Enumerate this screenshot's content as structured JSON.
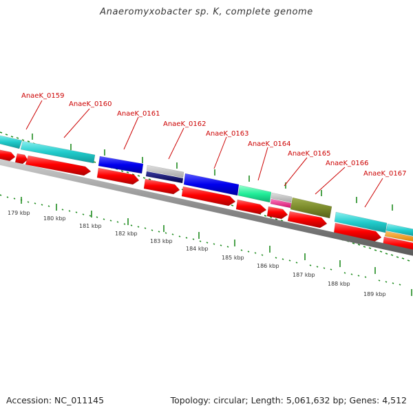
{
  "title": "Anaeromyxobacter sp. K, complete genome",
  "footer": {
    "accession": "Accession: NC_011145",
    "summary": "Topology: circular; Length: 5,061,632 bp; Genes: 4,512"
  },
  "colors": {
    "backbone": "#8a8a8a",
    "tick": "#1f8c1f",
    "cds_forward": "#ff1414",
    "label": "#cc0000"
  },
  "kbp_labels": [
    "179 kbp",
    "180 kbp",
    "181 kbp",
    "182 kbp",
    "183 kbp",
    "184 kbp",
    "185 kbp",
    "186 kbp",
    "187 kbp",
    "188 kbp",
    "189 kbp"
  ],
  "locus_labels": [
    "AnaeK_0159",
    "AnaeK_0160",
    "AnaeK_0161",
    "AnaeK_0162",
    "AnaeK_0163",
    "AnaeK_0164",
    "AnaeK_0165",
    "AnaeK_0166",
    "AnaeK_0167"
  ]
}
